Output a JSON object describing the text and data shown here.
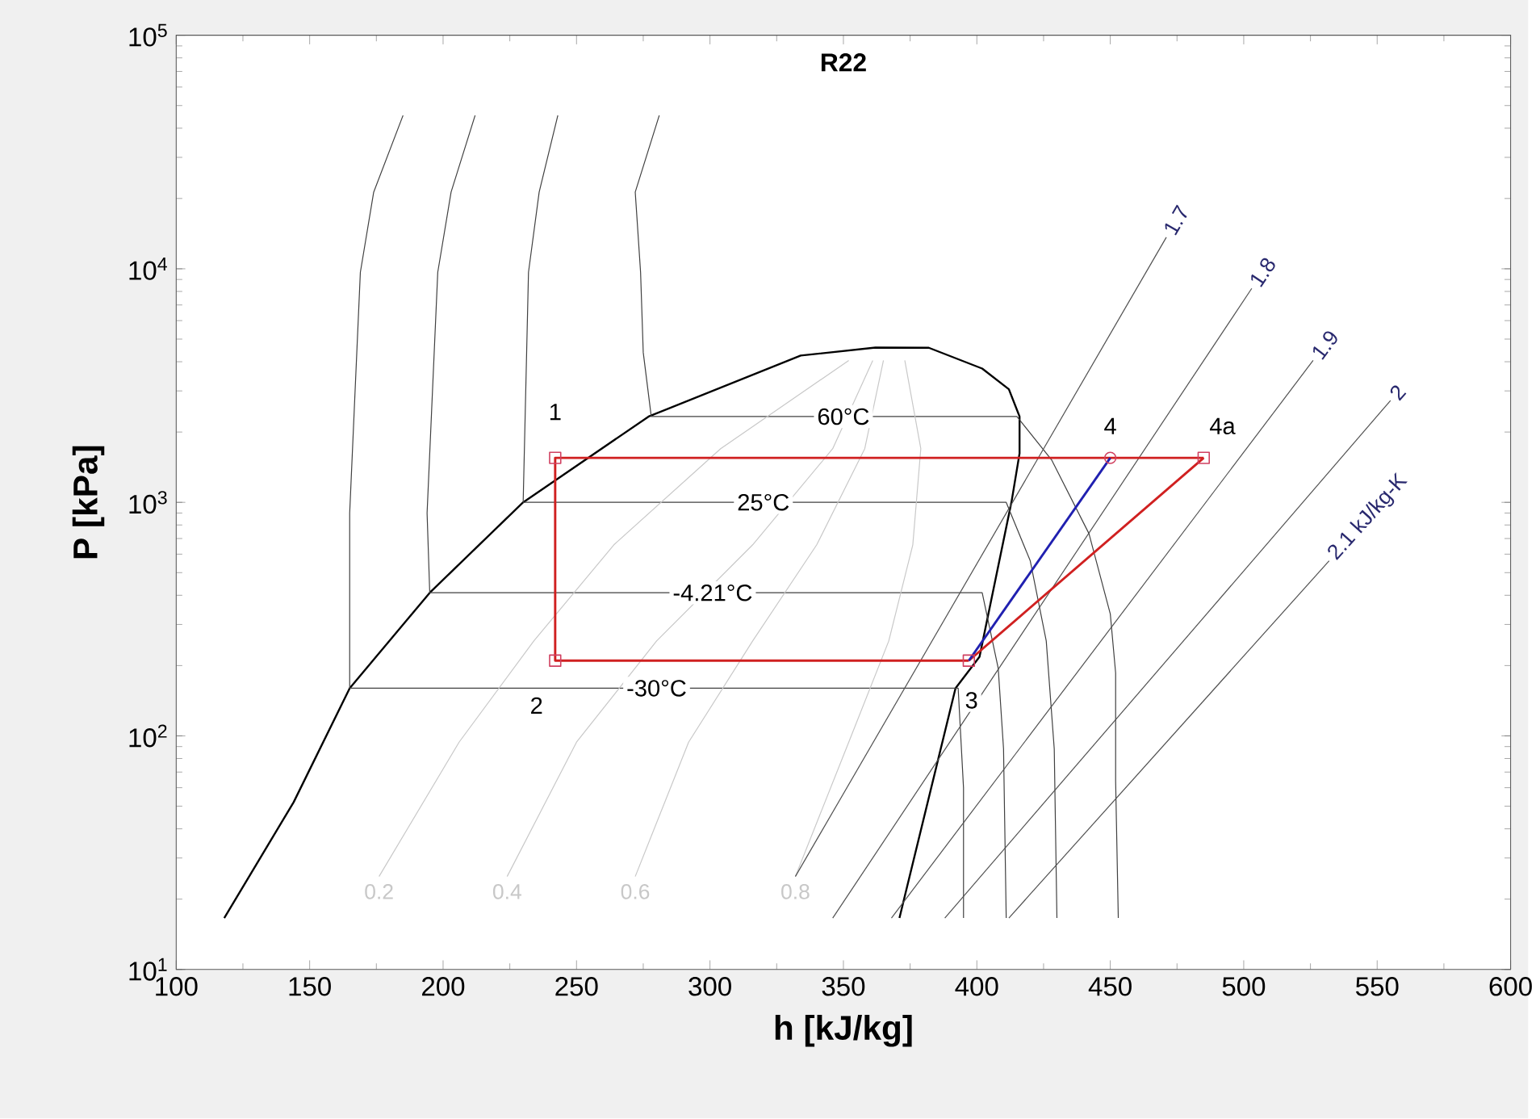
{
  "chart_data": {
    "type": "line",
    "title": "R22",
    "xlabel": "h [kJ/kg]",
    "ylabel": "P [kPa]",
    "log": "y",
    "xlim": [
      100,
      600
    ],
    "xticks": [
      100,
      150,
      200,
      250,
      300,
      350,
      400,
      450,
      500,
      550,
      600
    ],
    "ylim": [
      10,
      100000
    ],
    "yticks": [
      {
        "value": 10,
        "label": "10$^{1}$"
      },
      {
        "value": 100,
        "label": "10$^{2}$"
      },
      {
        "value": 1000,
        "label": "10$^{3}$"
      },
      {
        "value": 10000,
        "label": "10$^{4}$"
      },
      {
        "value": 100000,
        "label": "10$^{5}$"
      }
    ],
    "series": [
      {
        "color": "#000000",
        "x": [
          118,
          144,
          165,
          195,
          230,
          277,
          334,
          362,
          382,
          402,
          412,
          416,
          416,
          413,
          401,
          392,
          371
        ],
        "values": [
          16.6,
          52,
          160,
          410,
          1000,
          2330,
          4250,
          4600,
          4590,
          3740,
          3050,
          2330,
          1620,
          1007,
          218,
          160,
          16.6
        ]
      },
      {
        "color": "#404040",
        "x": [
          185,
          174,
          169,
          165,
          165,
          393,
          395,
          395
        ],
        "values": [
          45400,
          21300,
          9660,
          900,
          160,
          160,
          60,
          16.6
        ]
      },
      {
        "color": "#404040",
        "x": [
          212,
          203,
          198,
          194,
          195,
          402,
          408,
          410,
          411
        ],
        "values": [
          45400,
          21300,
          9660,
          900,
          410,
          410,
          195,
          88,
          16.6
        ]
      },
      {
        "color": "#404040",
        "x": [
          243,
          236,
          232,
          230,
          230,
          411,
          420,
          426,
          429,
          430
        ],
        "values": [
          45400,
          21300,
          9660,
          1000,
          1000,
          1000,
          562,
          255,
          88,
          16.6
        ]
      },
      {
        "color": "#404040",
        "x": [
          281,
          272,
          274,
          275,
          278,
          415,
          428,
          442,
          450,
          452,
          452,
          453
        ],
        "values": [
          45400,
          21300,
          9660,
          4380,
          2330,
          2330,
          1520,
          735,
          333,
          186,
          64,
          16.6
        ]
      },
      {
        "name": "0.2",
        "color": "#c8c8c8",
        "x": [
          352,
          304,
          264,
          234,
          206,
          176
        ],
        "values": [
          4050,
          1698,
          658,
          255,
          94,
          25
        ]
      },
      {
        "name": "0.4",
        "color": "#c8c8c8",
        "x": [
          361,
          346,
          316,
          280,
          250,
          224
        ],
        "values": [
          4050,
          1698,
          658,
          255,
          94,
          25
        ]
      },
      {
        "name": "0.6",
        "color": "#c8c8c8",
        "x": [
          365,
          358,
          340,
          316,
          292,
          272
        ],
        "values": [
          4050,
          1698,
          658,
          255,
          94,
          25
        ]
      },
      {
        "name": "0.8",
        "color": "#c8c8c8",
        "x": [
          373,
          379,
          376,
          367,
          352,
          332
        ],
        "values": [
          4050,
          1698,
          658,
          255,
          94,
          25
        ]
      },
      {
        "name": "1.7",
        "color": "#505050",
        "x": [
          332,
          471
        ],
        "values": [
          25,
          13650
        ]
      },
      {
        "name": "1.8",
        "color": "#505050",
        "x": [
          346,
          503
        ],
        "values": [
          16.6,
          8240
        ]
      },
      {
        "name": "1.9",
        "color": "#505050",
        "x": [
          368,
          526
        ],
        "values": [
          16.6,
          4050
        ]
      },
      {
        "name": "2",
        "color": "#505050",
        "x": [
          388,
          555
        ],
        "values": [
          16.6,
          2730
        ]
      },
      {
        "name": "2.1 kJ/kg-K",
        "color": "#505050",
        "x": [
          412,
          532
        ],
        "values": [
          16.6,
          562
        ]
      },
      {
        "color": "#d02020",
        "x": [
          485,
          242,
          242,
          397
        ],
        "values": [
          1550,
          1550,
          210,
          210
        ]
      },
      {
        "color": "#d02020",
        "x": [
          397,
          485
        ],
        "values": [
          210,
          1550
        ]
      },
      {
        "color": "#2020b0",
        "x": [
          397,
          450
        ],
        "values": [
          210,
          1550
        ]
      },
      {
        "type": "scatter",
        "color": "#d04060",
        "marker": "square",
        "x": [
          242,
          242,
          397,
          485
        ],
        "values": [
          1550,
          210,
          210,
          1550
        ]
      },
      {
        "type": "scatter",
        "color": "#d04060",
        "marker": "circle",
        "x": [
          450
        ],
        "values": [
          1550
        ]
      }
    ],
    "annotations": [
      {
        "text": "60°C",
        "x": 350,
        "y": 2330
      },
      {
        "text": "25°C",
        "x": 320,
        "y": 1000
      },
      {
        "text": "-4.21°C",
        "x": 301,
        "y": 410
      },
      {
        "text": "-30°C",
        "x": 280,
        "y": 160
      },
      {
        "text": "1",
        "x": 242,
        "y": 2440
      },
      {
        "text": "2",
        "x": 235,
        "y": 135
      },
      {
        "text": "3",
        "x": 398,
        "y": 142
      },
      {
        "text": "4",
        "x": 450,
        "y": 2120
      },
      {
        "text": "4a",
        "x": 492,
        "y": 2120
      }
    ]
  }
}
